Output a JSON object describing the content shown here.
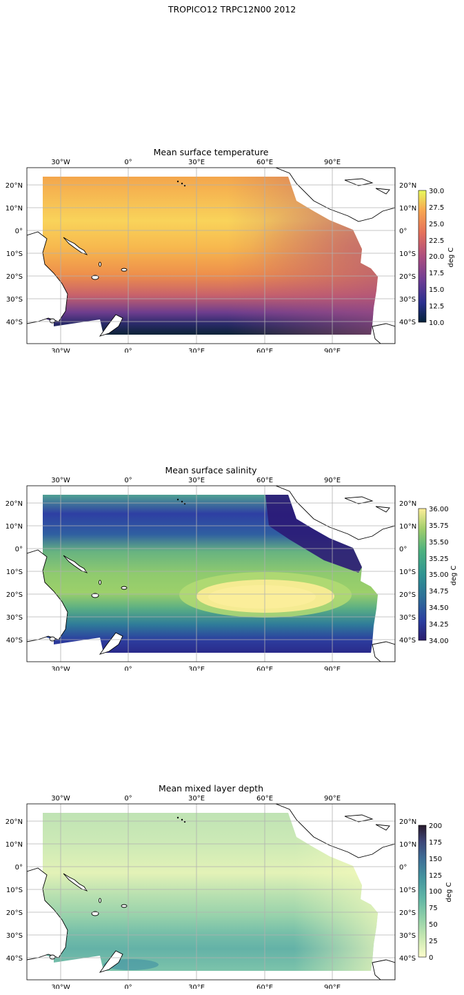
{
  "suptitle": "TROPICO12 TRPC12N00 2012",
  "lon_ticks": [
    "30°W",
    "0°",
    "30°E",
    "60°E",
    "90°E"
  ],
  "lat_ticks_left": [
    "20°N",
    "10°N",
    "0°",
    "10°S",
    "20°S",
    "30°S",
    "40°S"
  ],
  "lat_ticks_right": [
    "20°N",
    "10°N",
    "0°",
    "10°S",
    "20°S",
    "30°S",
    "40°S"
  ],
  "panels": [
    {
      "title": "Mean surface temperature",
      "colormap": "thermal",
      "colorbar": {
        "label": "deg C",
        "min": 10.0,
        "max": 30.0,
        "ticks": [
          "10.0",
          "12.5",
          "15.0",
          "17.5",
          "20.0",
          "22.5",
          "25.0",
          "27.5",
          "30.0"
        ]
      }
    },
    {
      "title": "Mean surface salinity",
      "colormap": "haline",
      "colorbar": {
        "label": "deg C",
        "min": 34.0,
        "max": 36.0,
        "ticks": [
          "34.00",
          "34.25",
          "34.50",
          "34.75",
          "35.00",
          "35.25",
          "35.50",
          "35.75",
          "36.00"
        ]
      }
    },
    {
      "title": "Mean mixed layer depth",
      "colormap": "deep",
      "colorbar": {
        "label": "deg C",
        "min": 0,
        "max": 200,
        "ticks": [
          "0",
          "25",
          "50",
          "75",
          "100",
          "125",
          "150",
          "175",
          "200"
        ]
      }
    }
  ]
}
